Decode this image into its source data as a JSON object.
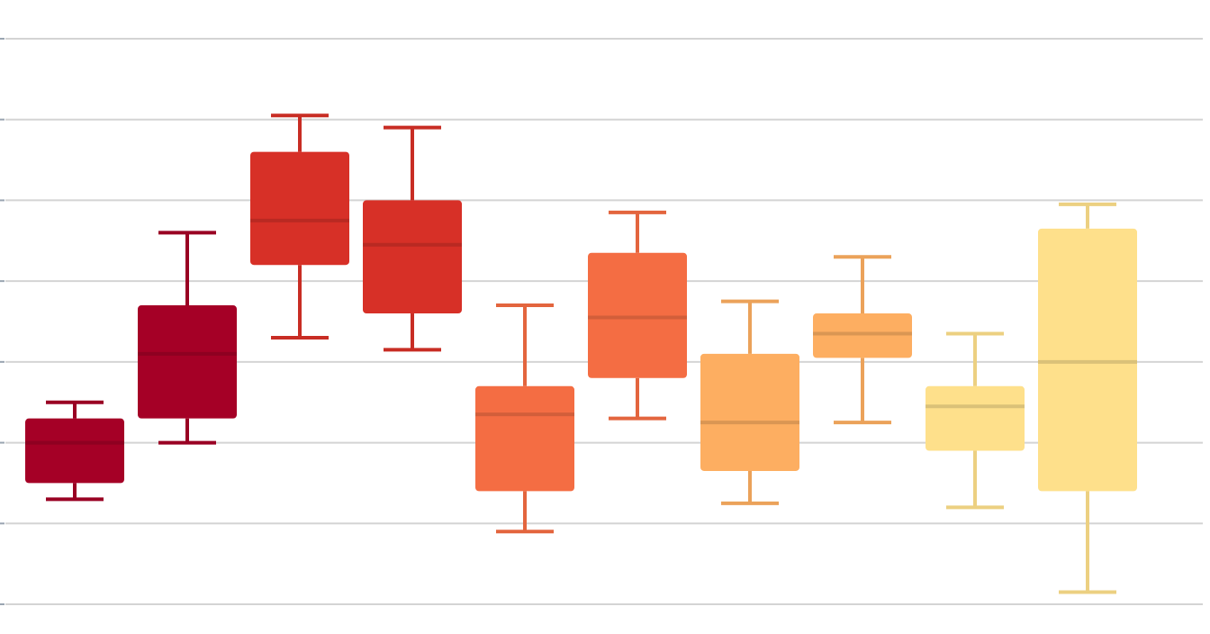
{
  "chart_data": {
    "type": "box",
    "title": "",
    "xlabel": "",
    "ylabel": "",
    "ylim": [
      0,
      7
    ],
    "grid": true,
    "legend": "none",
    "series": [
      {
        "color": "#a50026",
        "min": 1.3,
        "q1": 1.5,
        "median": 2.0,
        "q3": 2.3,
        "max": 2.5
      },
      {
        "color": "#a50026",
        "min": 2.0,
        "q1": 2.3,
        "median": 3.1,
        "q3": 3.7,
        "max": 4.6
      },
      {
        "color": "#d73027",
        "min": 3.3,
        "q1": 4.2,
        "median": 4.75,
        "q3": 5.6,
        "max": 6.05
      },
      {
        "color": "#d73027",
        "min": 3.15,
        "q1": 3.6,
        "median": 4.45,
        "q3": 5.0,
        "max": 5.9
      },
      {
        "color": "#f46d43",
        "min": 0.9,
        "q1": 1.4,
        "median": 2.35,
        "q3": 2.7,
        "max": 3.7
      },
      {
        "color": "#f46d43",
        "min": 2.3,
        "q1": 2.8,
        "median": 3.55,
        "q3": 4.35,
        "max": 4.85
      },
      {
        "color": "#fdae61",
        "min": 1.25,
        "q1": 1.65,
        "median": 2.25,
        "q3": 3.1,
        "max": 3.75
      },
      {
        "color": "#fdae61",
        "min": 2.25,
        "q1": 3.05,
        "median": 3.35,
        "q3": 3.6,
        "max": 4.3
      },
      {
        "color": "#fee08b",
        "min": 1.2,
        "q1": 1.9,
        "median": 2.45,
        "q3": 2.7,
        "max": 3.35
      },
      {
        "color": "#fee08b",
        "min": 0.15,
        "q1": 1.4,
        "median": 3.0,
        "q3": 4.65,
        "max": 4.95
      }
    ]
  }
}
